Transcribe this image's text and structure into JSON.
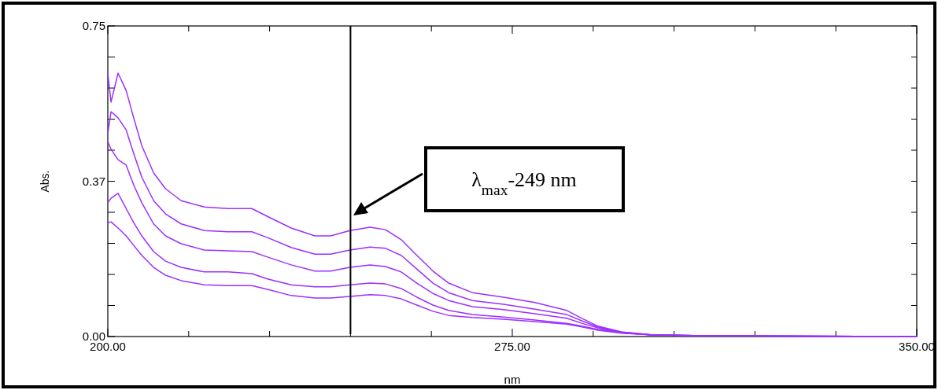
{
  "chart_data": {
    "type": "line",
    "xlabel": "nm",
    "ylabel": "Abs.",
    "x": [
      200,
      200.6,
      201.9,
      203.4,
      204.8,
      206.3,
      208.5,
      210.7,
      213.6,
      217.9,
      222.3,
      226.7,
      229.6,
      234,
      238.4,
      241.3,
      244.9,
      248.6,
      251.5,
      254.4,
      257.3,
      260.3,
      263.2,
      267.6,
      273.4,
      279.2,
      285.1,
      287.9,
      290.9,
      295.3,
      301.1,
      311.3,
      350
    ],
    "series": [
      {
        "color": "#9b30ff",
        "values": [
          0.636,
          0.566,
          0.636,
          0.594,
          0.528,
          0.461,
          0.395,
          0.357,
          0.328,
          0.313,
          0.309,
          0.309,
          0.29,
          0.262,
          0.243,
          0.243,
          0.256,
          0.264,
          0.258,
          0.234,
          0.196,
          0.158,
          0.129,
          0.106,
          0.095,
          0.082,
          0.063,
          0.044,
          0.025,
          0.011,
          0.004,
          0.002,
          0
        ]
      },
      {
        "color": "#9b30ff",
        "values": [
          0.49,
          0.543,
          0.528,
          0.499,
          0.442,
          0.385,
          0.328,
          0.296,
          0.272,
          0.256,
          0.253,
          0.253,
          0.239,
          0.215,
          0.199,
          0.199,
          0.209,
          0.216,
          0.213,
          0.196,
          0.163,
          0.129,
          0.106,
          0.087,
          0.078,
          0.066,
          0.053,
          0.038,
          0.023,
          0.011,
          0.004,
          0.002,
          0
        ]
      },
      {
        "color": "#9b30ff",
        "values": [
          0.471,
          0.452,
          0.427,
          0.414,
          0.366,
          0.323,
          0.272,
          0.243,
          0.224,
          0.209,
          0.207,
          0.205,
          0.192,
          0.173,
          0.158,
          0.158,
          0.167,
          0.173,
          0.169,
          0.156,
          0.129,
          0.104,
          0.087,
          0.072,
          0.065,
          0.055,
          0.044,
          0.032,
          0.021,
          0.009,
          0.004,
          0.002,
          0
        ]
      },
      {
        "color": "#9b30ff",
        "values": [
          0.323,
          0.334,
          0.346,
          0.309,
          0.275,
          0.243,
          0.205,
          0.182,
          0.167,
          0.156,
          0.156,
          0.152,
          0.139,
          0.125,
          0.12,
          0.12,
          0.125,
          0.129,
          0.127,
          0.116,
          0.095,
          0.076,
          0.063,
          0.053,
          0.047,
          0.04,
          0.032,
          0.025,
          0.017,
          0.009,
          0.004,
          0.002,
          0
        ]
      },
      {
        "color": "#9b30ff",
        "values": [
          0.275,
          0.277,
          0.262,
          0.243,
          0.22,
          0.196,
          0.167,
          0.148,
          0.135,
          0.125,
          0.123,
          0.123,
          0.114,
          0.099,
          0.093,
          0.093,
          0.097,
          0.101,
          0.099,
          0.091,
          0.076,
          0.061,
          0.051,
          0.046,
          0.042,
          0.036,
          0.03,
          0.023,
          0.015,
          0.008,
          0.004,
          0.002,
          0
        ]
      }
    ],
    "xlim": [
      200,
      350
    ],
    "xticks": [
      {
        "value": 200,
        "label": "200.00"
      },
      {
        "value": 215,
        "label": null
      },
      {
        "value": 230,
        "label": null
      },
      {
        "value": 245,
        "label": null
      },
      {
        "value": 260,
        "label": null
      },
      {
        "value": 275,
        "label": "275.00"
      },
      {
        "value": 290,
        "label": null
      },
      {
        "value": 305,
        "label": null
      },
      {
        "value": 320,
        "label": null
      },
      {
        "value": 335,
        "label": null
      },
      {
        "value": 350,
        "label": "350.00"
      }
    ],
    "ylim": [
      0,
      0.75
    ],
    "yticks": [
      {
        "value": 0,
        "label": "0.00"
      },
      {
        "value": 0.075,
        "label": null
      },
      {
        "value": 0.15,
        "label": null
      },
      {
        "value": 0.225,
        "label": null
      },
      {
        "value": 0.3,
        "label": null
      },
      {
        "value": 0.375,
        "label": "0.37"
      },
      {
        "value": 0.45,
        "label": null
      },
      {
        "value": 0.525,
        "label": null
      },
      {
        "value": 0.6,
        "label": null
      },
      {
        "value": 0.675,
        "label": null
      },
      {
        "value": 0.75,
        "label": "0.75"
      }
    ],
    "ref_lines": [
      {
        "axis": "x",
        "value": 245,
        "color": "#000000"
      }
    ],
    "annotations": [
      "λ$_{max}$-249 nm"
    ],
    "grid": false,
    "marker": "none",
    "line_style": "solid"
  }
}
